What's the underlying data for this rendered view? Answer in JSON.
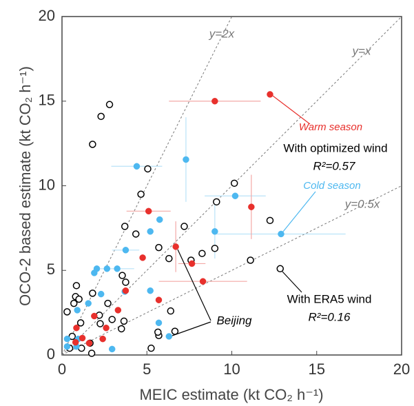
{
  "chart_data": {
    "type": "scatter",
    "xlabel": "MEIC estimate (kt CO₂ h⁻¹)",
    "ylabel": "OCO-2 based estimate (kt CO₂ h⁻¹)",
    "xlim": [
      0,
      20
    ],
    "ylim": [
      0,
      20
    ],
    "xticks": [
      0,
      5,
      10,
      15,
      20
    ],
    "yticks": [
      0,
      5,
      10,
      15,
      20
    ],
    "ref_lines": [
      {
        "label": "y=2x",
        "slope": 2
      },
      {
        "label": "y=x",
        "slope": 1
      },
      {
        "label": "y=0.5x",
        "slope": 0.5
      }
    ],
    "annotations": [
      "With optimized wind",
      "R²=0.57",
      "R²=0.16",
      "Beijing"
    ],
    "series": [
      {
        "name": "With ERA5 wind",
        "color": "#000000",
        "filled": false,
        "x": [
          2.8,
          2.3,
          1.8,
          5.05,
          4.65,
          10.15,
          9.1,
          12.25,
          7.2,
          3.7,
          4.35,
          9.0,
          8.25,
          7.6,
          6.3,
          5.7,
          11.1,
          12.85,
          3.55,
          3.75,
          0.85,
          0.8,
          0.7,
          1.0,
          6.4,
          3.65,
          2.95,
          2.2,
          1.1,
          6.65,
          5.7,
          5.65,
          5.25,
          1.65,
          1.75,
          1.15,
          0.3,
          0.6,
          2.25,
          3.5,
          0.45,
          2.7,
          1.8
        ],
        "y": [
          14.8,
          14.1,
          12.45,
          11.0,
          9.5,
          10.15,
          9.05,
          7.95,
          7.6,
          7.6,
          7.15,
          6.3,
          6.0,
          5.6,
          5.7,
          6.35,
          5.6,
          5.1,
          4.7,
          4.3,
          4.1,
          3.45,
          3.05,
          3.3,
          2.6,
          2.0,
          2.1,
          2.35,
          1.9,
          1.4,
          1.15,
          1.35,
          0.4,
          0.7,
          0.1,
          0.4,
          2.55,
          1.1,
          1.85,
          1.55,
          0.4,
          3.05,
          3.65
        ]
      },
      {
        "name": "Cold season",
        "color": "#4db8f0",
        "filled": true,
        "x": [
          4.4,
          7.3,
          10.2,
          12.9,
          9.0,
          5.75,
          5.2,
          3.75,
          2.05,
          2.65,
          3.25,
          1.9,
          5.2,
          3.7,
          2.3,
          5.7,
          6.3,
          0.9,
          0.3,
          0.95,
          0.85,
          2.95,
          1.55,
          0.3
        ],
        "y": [
          11.15,
          11.55,
          9.4,
          7.15,
          7.3,
          8.0,
          7.3,
          6.2,
          5.1,
          5.1,
          5.1,
          4.85,
          3.8,
          3.75,
          3.6,
          1.9,
          1.1,
          2.65,
          0.95,
          0.95,
          0.5,
          0.35,
          3.05,
          0.5
        ],
        "x_err": [
          1.5,
          null,
          1.8,
          3.8,
          null,
          null,
          null,
          0.8,
          null,
          null,
          1.0,
          null,
          null,
          null,
          null,
          null,
          null,
          null,
          null,
          null,
          null,
          null,
          null,
          null
        ],
        "y_err": [
          null,
          2.5,
          null,
          null,
          1.6,
          null,
          null,
          null,
          null,
          null,
          null,
          null,
          null,
          null,
          null,
          null,
          null,
          null,
          null,
          null,
          null,
          null,
          null,
          null
        ]
      },
      {
        "name": "Warm season",
        "color": "#e8302c",
        "filled": true,
        "x": [
          9.0,
          12.25,
          5.1,
          11.15,
          6.7,
          4.75,
          7.65,
          8.3,
          3.75,
          3.3,
          5.7,
          1.9,
          0.85,
          1.2,
          1.6,
          0.8,
          2.4,
          2.6
        ],
        "y": [
          15.0,
          15.4,
          8.5,
          8.75,
          6.4,
          5.75,
          5.4,
          4.35,
          3.8,
          2.65,
          3.25,
          2.3,
          1.6,
          1.0,
          0.7,
          0.75,
          0.95,
          1.6
        ],
        "x_err": [
          2.7,
          null,
          1.3,
          null,
          null,
          null,
          0.8,
          2.6,
          null,
          null,
          null,
          null,
          null,
          null,
          null,
          null,
          null,
          null
        ],
        "y_err": [
          null,
          null,
          null,
          1.9,
          1.5,
          null,
          null,
          null,
          null,
          null,
          null,
          null,
          null,
          null,
          null,
          null,
          null,
          null
        ]
      }
    ]
  }
}
